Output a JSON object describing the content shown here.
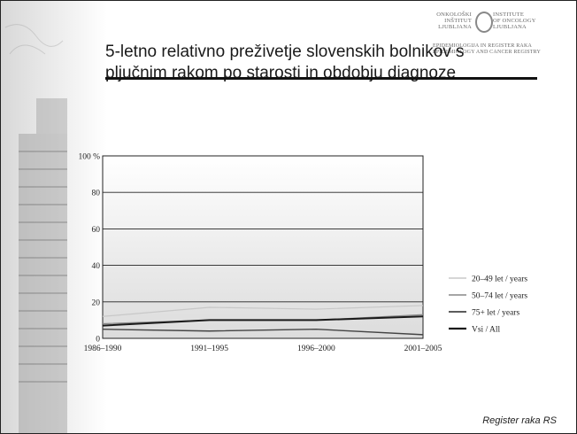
{
  "slide": {
    "title": "5-letno relativno preživetje slovenskih  bolnikov s pljučnim rakom po starosti in obdobju diagnoze",
    "footer": "Register raka RS",
    "logo": {
      "onkoloski": "ONKOLOŠKI\nINŠTITUT\nLJUBLJANA",
      "institute": "INSTITUTE\nOF ONCOLOGY\nLJUBLJANA",
      "subtitle": "EPIDEMIOLOGIJA IN REGISTER RAKA\nEPIDEMIOLOGY AND CANCER REGISTRY"
    }
  },
  "chart_data": {
    "type": "line",
    "categories": [
      "1986–1990",
      "1991–1995",
      "1996–2000",
      "2001–2005"
    ],
    "yticks": [
      "0",
      "20",
      "40",
      "60",
      "80",
      "100 %"
    ],
    "ylim": [
      0,
      100
    ],
    "grid": true,
    "legend_position": "right",
    "series": [
      {
        "name": "20–49 let / years",
        "values": [
          12,
          17,
          16,
          18
        ],
        "color": "#c8c8c8",
        "width": 1.2
      },
      {
        "name": "50–74 let / years",
        "values": [
          8,
          10,
          10,
          13
        ],
        "color": "#888888",
        "width": 1.2
      },
      {
        "name": "75+ let / years",
        "values": [
          5,
          4,
          5,
          2
        ],
        "color": "#444444",
        "width": 1.4
      },
      {
        "name": "Vsi / All",
        "values": [
          7,
          10,
          10,
          12
        ],
        "color": "#1a1a1a",
        "width": 2
      }
    ]
  }
}
